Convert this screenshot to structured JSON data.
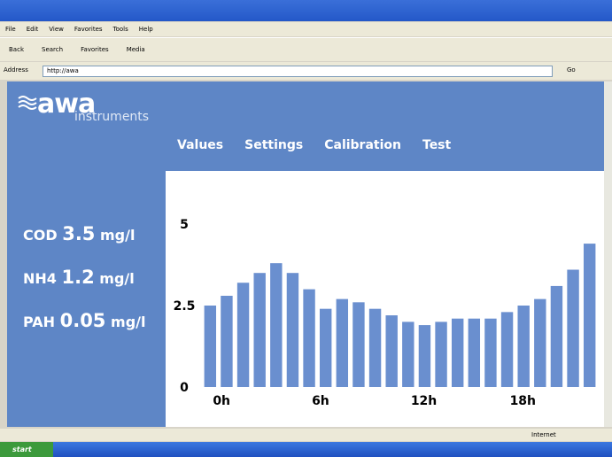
{
  "browser": {
    "menu": [
      "File",
      "Edit",
      "View",
      "Favorites",
      "Tools",
      "Help"
    ],
    "toolbar": [
      "Back",
      "Search",
      "Favorites",
      "Media"
    ],
    "address_label": "Address",
    "address": "http://awa",
    "go": "Go",
    "status": "Internet",
    "start": "start"
  },
  "app": {
    "logo": "awa",
    "logo_sub": "instruments",
    "nav": [
      "Values",
      "Settings",
      "Calibration",
      "Test"
    ],
    "readings": [
      {
        "label": "COD",
        "value": 3.5,
        "unit": "mg/l"
      },
      {
        "label": "NH4",
        "value": 1.2,
        "unit": "mg/l"
      },
      {
        "label": "PAH",
        "value": 0.05,
        "unit": "mg/l"
      }
    ]
  },
  "chart_data": {
    "type": "bar",
    "categories": [
      "0h",
      null,
      null,
      null,
      null,
      null,
      "6h",
      null,
      null,
      null,
      null,
      null,
      "12h",
      null,
      null,
      null,
      null,
      null,
      "18h",
      null,
      null,
      null,
      null,
      null
    ],
    "values": [
      2.5,
      2.8,
      3.2,
      3.5,
      3.8,
      3.5,
      3.0,
      2.4,
      2.7,
      2.6,
      2.4,
      2.2,
      2.0,
      1.9,
      2.0,
      2.1,
      2.1,
      2.1,
      2.3,
      2.5,
      2.7,
      3.1,
      3.6,
      4.4
    ],
    "color": "#6a8fcf",
    "ylim": [
      0,
      5
    ],
    "yticks": [
      0,
      2.5,
      5
    ],
    "grid": false
  }
}
